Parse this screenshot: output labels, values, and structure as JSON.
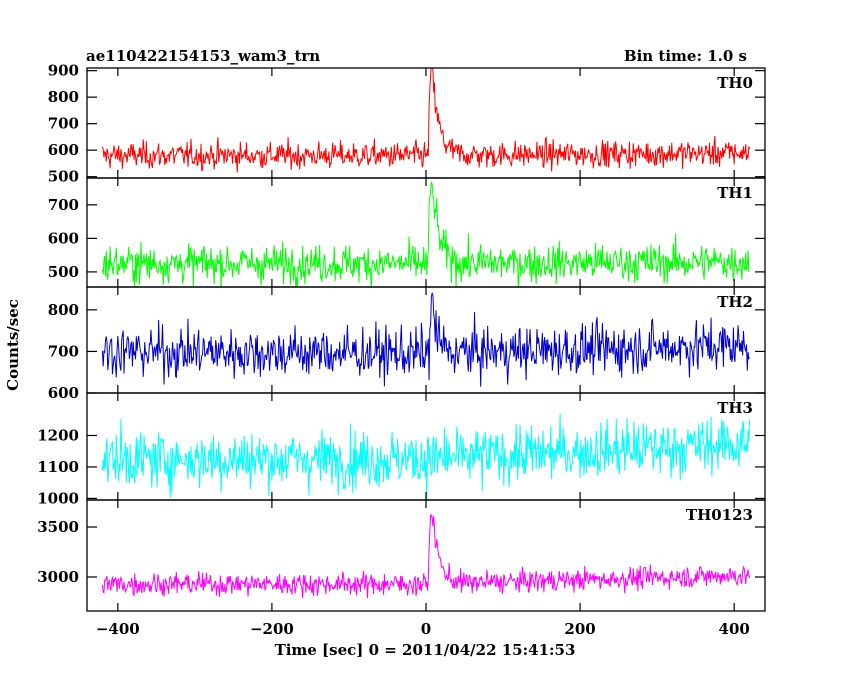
{
  "chart_data": {
    "type": "line",
    "title_left": "ae110422154153_wam3_trn",
    "title_right": "Bin time: 1.0 s",
    "xlabel": "Time [sec] 0 = 2011/04/22 15:41:53",
    "ylabel": "Counts/sec",
    "xlim": [
      -440,
      440
    ],
    "x_ticks": [
      -400,
      -200,
      0,
      200,
      400
    ],
    "x_tick_labels": [
      "−400",
      "−200",
      "0",
      "200",
      "400"
    ],
    "x_data_range": [
      -420,
      420
    ],
    "bin_time_s": 1.0,
    "panels": [
      {
        "name": "TH0",
        "color": "#ff0000",
        "ylim": [
          495,
          910
        ],
        "y_ticks": [
          500,
          600,
          700,
          800,
          900
        ],
        "y_tick_labels": [
          "500",
          "600",
          "700",
          "800",
          "900"
        ],
        "baseline": [
          [
            -420,
            580
          ],
          [
            0,
            580
          ],
          [
            420,
            590
          ]
        ],
        "noise": 25,
        "peak": {
          "x": 8,
          "height": 320,
          "width": 4
        }
      },
      {
        "name": "TH1",
        "color": "#00ff00",
        "ylim": [
          455,
          780
        ],
        "y_ticks": [
          500,
          600,
          700
        ],
        "y_tick_labels": [
          "500",
          "600",
          "700"
        ],
        "baseline": [
          [
            -420,
            525
          ],
          [
            0,
            525
          ],
          [
            420,
            530
          ]
        ],
        "noise": 28,
        "peak": {
          "x": 8,
          "height": 240,
          "width": 4
        }
      },
      {
        "name": "TH2",
        "color": "#0000cc",
        "ylim": [
          600,
          855
        ],
        "y_ticks": [
          600,
          700,
          800
        ],
        "y_tick_labels": [
          "600",
          "700",
          "800"
        ],
        "baseline": [
          [
            -420,
            700
          ],
          [
            0,
            695
          ],
          [
            420,
            715
          ]
        ],
        "noise": 30,
        "peak": {
          "x": 8,
          "height": 120,
          "width": 3
        }
      },
      {
        "name": "TH3",
        "color": "#00ffff",
        "ylim": [
          995,
          1335
        ],
        "y_ticks": [
          1000,
          1100,
          1200
        ],
        "y_tick_labels": [
          "1000",
          "1100",
          "1200"
        ],
        "baseline": [
          [
            -420,
            1125
          ],
          [
            0,
            1125
          ],
          [
            420,
            1175
          ]
        ],
        "noise": 45,
        "peak": {
          "x": 8,
          "height": 0,
          "width": 3
        }
      },
      {
        "name": "TH0123",
        "color": "#ff00ff",
        "ylim": [
          2660,
          3770
        ],
        "y_ticks": [
          3000,
          3500
        ],
        "y_tick_labels": [
          "3000",
          "3500"
        ],
        "baseline": [
          [
            -420,
            2930
          ],
          [
            0,
            2930
          ],
          [
            420,
            3020
          ]
        ],
        "noise": 55,
        "peak": {
          "x": 8,
          "height": 720,
          "width": 4
        }
      }
    ]
  }
}
